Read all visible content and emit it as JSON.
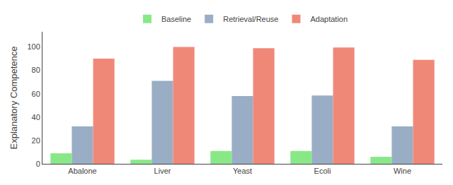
{
  "chart_data": {
    "type": "bar",
    "categories": [
      "Abalone",
      "Liver",
      "Yeast",
      "Ecoli",
      "Wine"
    ],
    "series": [
      {
        "name": "Baseline",
        "color": "#88e888",
        "values": [
          9,
          3.5,
          11,
          11,
          6
        ]
      },
      {
        "name": "Retrieval/Reuse",
        "color": "#99aec4",
        "values": [
          32,
          71,
          58,
          58.5,
          32
        ]
      },
      {
        "name": "Adaptation",
        "color": "#f08878",
        "values": [
          90,
          100,
          99,
          99.5,
          89
        ]
      }
    ],
    "ylabel": "Explanatory Competence",
    "ylim": [
      0,
      113
    ],
    "yticks": [
      0,
      20,
      40,
      60,
      80,
      100
    ],
    "grid": false,
    "legend": "top"
  }
}
